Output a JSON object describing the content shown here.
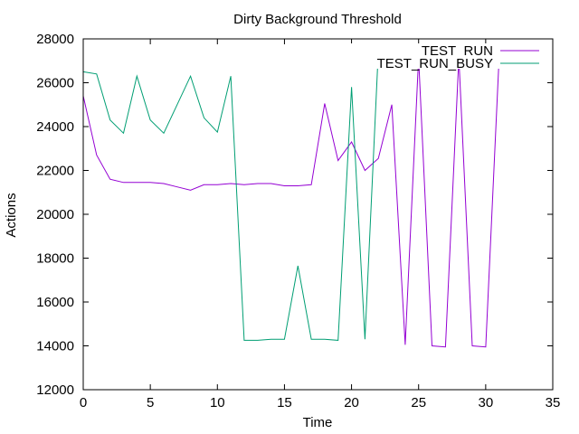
{
  "chart_data": {
    "type": "line",
    "title": "Dirty Background Threshold",
    "xlabel": "Time",
    "ylabel": "Actions",
    "xlim": [
      0,
      35
    ],
    "ylim": [
      12000,
      28000
    ],
    "xticks": [
      0,
      5,
      10,
      15,
      20,
      25,
      30,
      35
    ],
    "yticks": [
      12000,
      14000,
      16000,
      18000,
      20000,
      22000,
      24000,
      26000,
      28000
    ],
    "grid": false,
    "legend_position": "top-right",
    "series": [
      {
        "name": "TEST_RUN",
        "color": "#9400d3",
        "x": [
          0,
          1,
          2,
          3,
          4,
          5,
          6,
          7,
          8,
          9,
          10,
          11,
          12,
          13,
          14,
          15,
          16,
          17,
          18,
          19,
          20,
          21,
          22,
          23,
          24,
          25,
          26,
          27,
          28,
          29,
          30,
          31,
          32,
          33,
          34
        ],
        "y": [
          25400,
          22700,
          21600,
          21450,
          21450,
          21450,
          21400,
          21250,
          21100,
          21350,
          21350,
          21400,
          21350,
          21400,
          21400,
          21300,
          21300,
          21350,
          25050,
          22450,
          23300,
          22000,
          22550,
          25000,
          14050,
          27150,
          14000,
          13950,
          27150,
          14000,
          13950,
          27150,
          27150,
          27150,
          27150
        ]
      },
      {
        "name": "TEST_RUN_BUSY",
        "color": "#009e73",
        "x": [
          0,
          1,
          2,
          3,
          4,
          5,
          6,
          7,
          8,
          9,
          10,
          11,
          12,
          13,
          14,
          15,
          16,
          17,
          18,
          19,
          20,
          21,
          22,
          23,
          24,
          25,
          26,
          27,
          28,
          29,
          30,
          31,
          32,
          33,
          34
        ],
        "y": [
          26500,
          26400,
          24300,
          23700,
          26300,
          24300,
          23700,
          25000,
          26300,
          24400,
          23750,
          26300,
          14250,
          14250,
          14300,
          14300,
          17650,
          14300,
          14300,
          14250,
          25800,
          14300,
          27450,
          27450,
          27450,
          27450,
          27450,
          27450,
          27450,
          27450,
          27450,
          26850,
          26850,
          26850,
          26850
        ]
      }
    ]
  }
}
